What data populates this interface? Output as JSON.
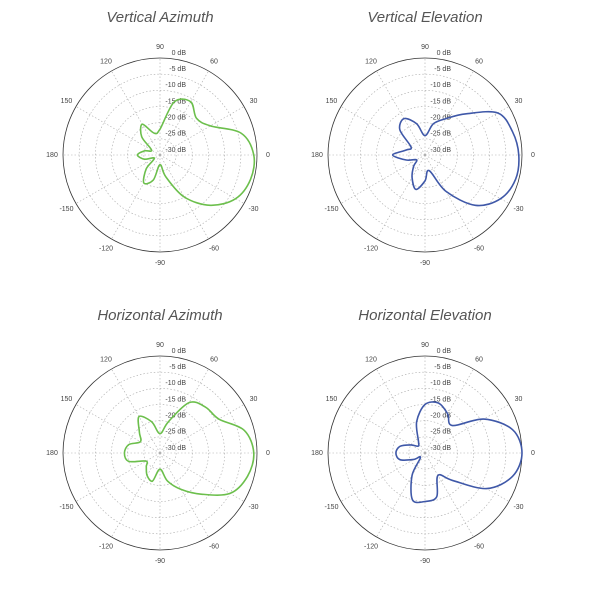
{
  "chart_data": [
    {
      "type": "polar",
      "title": "Vertical Azimuth",
      "color": "#6cbf4c",
      "theta": [
        0,
        15,
        30,
        45,
        60,
        75,
        90,
        105,
        120,
        135,
        150,
        165,
        180,
        195,
        210,
        225,
        240,
        255,
        270,
        285,
        300,
        315,
        330,
        345
      ],
      "values": [
        -1,
        -4,
        -12,
        -14,
        -11,
        -13,
        -22,
        -23,
        -19,
        -22,
        -27,
        -25,
        -23,
        -25,
        -28,
        -24,
        -20,
        -22,
        -27,
        -23,
        -15,
        -8,
        -3,
        -1
      ],
      "rlim": [
        -30,
        0
      ],
      "rticks": [
        {
          "value": 0,
          "label": "0 dB"
        },
        {
          "value": -5,
          "label": "-5 dB"
        },
        {
          "value": -10,
          "label": "-10 dB"
        },
        {
          "value": -15,
          "label": "-15 dB"
        },
        {
          "value": -20,
          "label": "-20 dB"
        },
        {
          "value": -25,
          "label": "-25 dB"
        },
        {
          "value": -30,
          "label": "-30 dB"
        }
      ],
      "thetaticks": [
        0,
        30,
        60,
        90,
        120,
        150,
        180,
        -150,
        -120,
        -90,
        -60,
        -30
      ],
      "grid": true
    },
    {
      "type": "polar",
      "title": "Vertical Elevation",
      "color": "#3f58a8",
      "theta": [
        0,
        15,
        30,
        45,
        60,
        75,
        90,
        105,
        120,
        135,
        150,
        165,
        180,
        195,
        210,
        225,
        240,
        255,
        270,
        285,
        300,
        315,
        330,
        345
      ],
      "values": [
        -1,
        -2,
        -4,
        -12,
        -17,
        -20,
        -24,
        -20,
        -17,
        -19,
        -25,
        -24,
        -20,
        -24,
        -27,
        -25,
        -22,
        -19,
        -22,
        -25,
        -17,
        -8,
        -3,
        -1
      ],
      "rlim": [
        -30,
        0
      ],
      "rticks": [
        {
          "value": 0,
          "label": "0 dB"
        },
        {
          "value": -5,
          "label": "-5 dB"
        },
        {
          "value": -10,
          "label": "-10 dB"
        },
        {
          "value": -15,
          "label": "-15 dB"
        },
        {
          "value": -20,
          "label": "-20 dB"
        },
        {
          "value": -25,
          "label": "-25 dB"
        },
        {
          "value": -30,
          "label": "-30 dB"
        }
      ],
      "thetaticks": [
        0,
        30,
        60,
        90,
        120,
        150,
        180,
        -150,
        -120,
        -90,
        -60,
        -30
      ],
      "grid": true
    },
    {
      "type": "polar",
      "title": "Horizontal Azimuth",
      "color": "#6cbf4c",
      "theta": [
        0,
        15,
        30,
        45,
        60,
        75,
        90,
        105,
        120,
        135,
        150,
        165,
        180,
        195,
        210,
        225,
        240,
        255,
        270,
        285,
        300,
        315,
        330,
        345
      ],
      "values": [
        -1,
        -3,
        -9,
        -10,
        -12,
        -20,
        -24,
        -20,
        -17,
        -21,
        -23,
        -20,
        -19,
        -20,
        -25,
        -24,
        -22,
        -21,
        -25,
        -21,
        -17,
        -12,
        -5,
        -2
      ],
      "rlim": [
        -30,
        0
      ],
      "rticks": [
        {
          "value": 0,
          "label": "0 dB"
        },
        {
          "value": -5,
          "label": "-5 dB"
        },
        {
          "value": -10,
          "label": "-10 dB"
        },
        {
          "value": -15,
          "label": "-15 dB"
        },
        {
          "value": -20,
          "label": "-20 dB"
        },
        {
          "value": -25,
          "label": "-25 dB"
        },
        {
          "value": -30,
          "label": "-30 dB"
        }
      ],
      "thetaticks": [
        0,
        30,
        60,
        90,
        120,
        150,
        180,
        -150,
        -120,
        -90,
        -60,
        -30
      ],
      "grid": true
    },
    {
      "type": "polar",
      "title": "Horizontal Elevation",
      "color": "#3f58a8",
      "theta": [
        0,
        15,
        30,
        45,
        60,
        75,
        90,
        105,
        120,
        135,
        150,
        165,
        180,
        195,
        210,
        225,
        240,
        255,
        270,
        285,
        300,
        315,
        330,
        345
      ],
      "values": [
        0,
        -2,
        -9,
        -18,
        -16,
        -14,
        -15,
        -20,
        -26,
        -27,
        -25,
        -22,
        -21,
        -22,
        -26,
        -28,
        -22,
        -15,
        -15,
        -16,
        -22,
        -18,
        -8,
        -2
      ],
      "rlim": [
        -30,
        0
      ],
      "rticks": [
        {
          "value": 0,
          "label": "0 dB"
        },
        {
          "value": -5,
          "label": "-5 dB"
        },
        {
          "value": -10,
          "label": "-10 dB"
        },
        {
          "value": -15,
          "label": "-15 dB"
        },
        {
          "value": -20,
          "label": "-20 dB"
        },
        {
          "value": -25,
          "label": "-25 dB"
        },
        {
          "value": -30,
          "label": "-30 dB"
        }
      ],
      "thetaticks": [
        0,
        30,
        60,
        90,
        120,
        150,
        180,
        -150,
        -120,
        -90,
        -60,
        -30
      ],
      "grid": true
    }
  ]
}
